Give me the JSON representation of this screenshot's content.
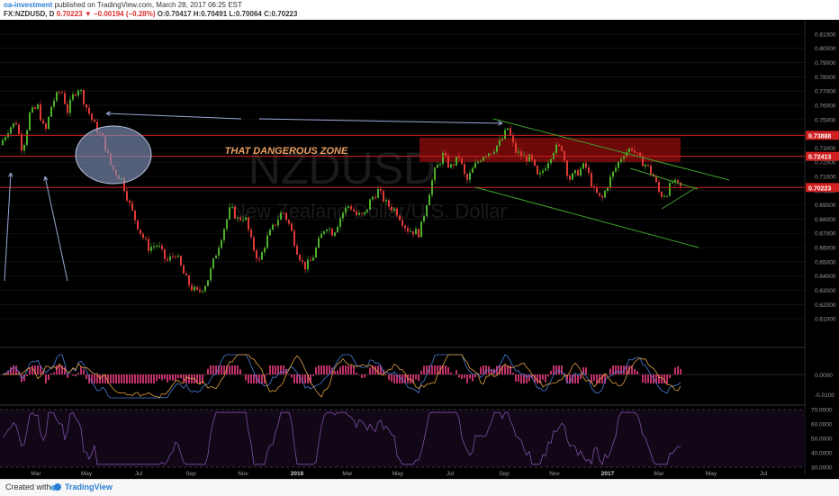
{
  "header": {
    "author": "oa-investment",
    "published": "published on TradingView.com, March 28, 2017 06:25 EST",
    "symbol": "FX:NZDUSD, D",
    "price": "0.70223",
    "change": "−0.00194 (−0.28%)",
    "open": "O:0.70417",
    "high": "H:0.70491",
    "low": "L:0.70064",
    "close": "C:0.70223"
  },
  "watermark": {
    "symbol": "NZDUSD",
    "name": "New Zealand Dollar/U.S. Dollar"
  },
  "chart_data": {
    "type": "candlestick",
    "y_ticks": [
      0.61,
      0.62,
      0.63,
      0.64,
      0.65,
      0.66,
      0.67,
      0.68,
      0.69,
      0.7,
      0.71,
      0.72,
      0.73,
      0.74,
      0.75,
      0.76,
      0.77,
      0.78,
      0.79,
      0.8,
      0.81
    ],
    "y_tick_labels": [
      "0.61000",
      "0.62000",
      "0.63000",
      "0.64000",
      "0.65000",
      "0.66000",
      "0.67000",
      "0.68000",
      "0.69000",
      "0.70000",
      "0.71000",
      "0.72000",
      "0.73000",
      "0.74000",
      "0.75000",
      "0.76000",
      "0.77000",
      "0.78000",
      "0.79000",
      "0.80000",
      "0.81000"
    ],
    "ylim": [
      0.605,
      0.815
    ],
    "x_labels": [
      "Mar",
      "May",
      "Jul",
      "Sep",
      "Nov",
      "2016",
      "Mar",
      "May",
      "Jul",
      "Sep",
      "Nov",
      "2017",
      "Mar",
      "May",
      "Jul"
    ],
    "path": [
      [
        0,
        0.732
      ],
      [
        10,
        0.744
      ],
      [
        18,
        0.748
      ],
      [
        25,
        0.728
      ],
      [
        33,
        0.754
      ],
      [
        42,
        0.759
      ],
      [
        50,
        0.74
      ],
      [
        58,
        0.762
      ],
      [
        68,
        0.771
      ],
      [
        75,
        0.756
      ],
      [
        82,
        0.768
      ],
      [
        88,
        0.773
      ],
      [
        95,
        0.76
      ],
      [
        105,
        0.746
      ],
      [
        115,
        0.735
      ],
      [
        124,
        0.716
      ],
      [
        135,
        0.708
      ],
      [
        145,
        0.688
      ],
      [
        155,
        0.672
      ],
      [
        165,
        0.66
      ],
      [
        175,
        0.662
      ],
      [
        185,
        0.65
      ],
      [
        195,
        0.656
      ],
      [
        205,
        0.64
      ],
      [
        212,
        0.632
      ],
      [
        220,
        0.628
      ],
      [
        230,
        0.636
      ],
      [
        238,
        0.652
      ],
      [
        248,
        0.672
      ],
      [
        256,
        0.688
      ],
      [
        264,
        0.68
      ],
      [
        272,
        0.682
      ],
      [
        280,
        0.662
      ],
      [
        288,
        0.65
      ],
      [
        296,
        0.666
      ],
      [
        305,
        0.676
      ],
      [
        314,
        0.686
      ],
      [
        322,
        0.675
      ],
      [
        330,
        0.658
      ],
      [
        338,
        0.646
      ],
      [
        346,
        0.651
      ],
      [
        354,
        0.664
      ],
      [
        362,
        0.676
      ],
      [
        370,
        0.67
      ],
      [
        380,
        0.684
      ],
      [
        388,
        0.69
      ],
      [
        396,
        0.683
      ],
      [
        404,
        0.682
      ],
      [
        412,
        0.694
      ],
      [
        420,
        0.7
      ],
      [
        430,
        0.69
      ],
      [
        440,
        0.686
      ],
      [
        452,
        0.673
      ],
      [
        466,
        0.67
      ],
      [
        474,
        0.692
      ],
      [
        482,
        0.712
      ],
      [
        492,
        0.725
      ],
      [
        500,
        0.716
      ],
      [
        510,
        0.724
      ],
      [
        518,
        0.706
      ],
      [
        526,
        0.716
      ],
      [
        536,
        0.725
      ],
      [
        546,
        0.728
      ],
      [
        556,
        0.734
      ],
      [
        564,
        0.744
      ],
      [
        572,
        0.728
      ],
      [
        580,
        0.724
      ],
      [
        590,
        0.722
      ],
      [
        598,
        0.708
      ],
      [
        606,
        0.718
      ],
      [
        616,
        0.73
      ],
      [
        624,
        0.73
      ],
      [
        632,
        0.708
      ],
      [
        640,
        0.712
      ],
      [
        650,
        0.718
      ],
      [
        660,
        0.7
      ],
      [
        668,
        0.693
      ],
      [
        676,
        0.706
      ],
      [
        684,
        0.716
      ],
      [
        692,
        0.726
      ],
      [
        702,
        0.73
      ],
      [
        710,
        0.722
      ],
      [
        718,
        0.718
      ],
      [
        726,
        0.71
      ],
      [
        733,
        0.697
      ],
      [
        740,
        0.698
      ],
      [
        747,
        0.706
      ],
      [
        756,
        0.702
      ]
    ],
    "levels": [
      "0.73888",
      "0.72413",
      "0.70223"
    ],
    "zone_label": "THAT DANGEROUS ZONE",
    "macd_ticks": [
      "0.0000",
      "-0.0100"
    ],
    "rsi_ticks": [
      "70.0000",
      "60.0000",
      "50.0000",
      "40.0000",
      "30.0000"
    ]
  },
  "colors": {
    "background": "#000000",
    "up": "#4caf2a",
    "down": "#e03a36",
    "zone": "#7a0a0a",
    "level_line": "#d02020",
    "channel": "#3ea02a",
    "arrows": "#9aa8d8",
    "zone_text": "#e8a060",
    "rsi": "#7a4fa8",
    "rsi_bg": "#120716"
  },
  "footer": {
    "created": "Created with",
    "brand": "TradingView"
  }
}
